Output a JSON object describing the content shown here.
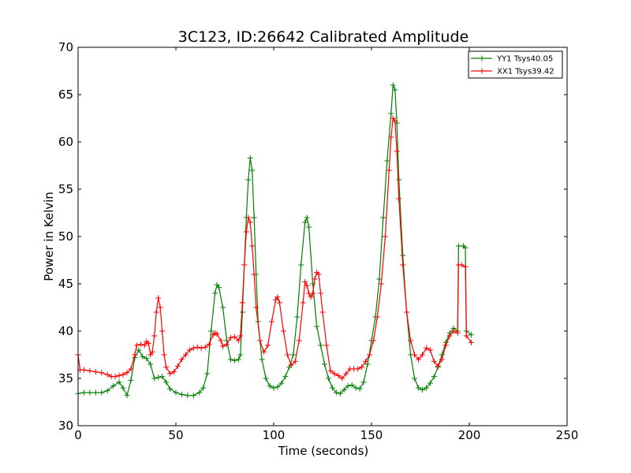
{
  "chart_data": {
    "type": "line",
    "title": "3C123, ID:26642 Calibrated Amplitude",
    "xlabel": "Time (seconds)",
    "ylabel": "Power in Kelvin",
    "xlim": [
      0,
      250
    ],
    "ylim": [
      30,
      70
    ],
    "xticks": [
      0,
      50,
      100,
      150,
      200,
      250
    ],
    "yticks": [
      30,
      35,
      40,
      45,
      50,
      55,
      60,
      65,
      70
    ],
    "grid": false,
    "legend_position": "top-right",
    "marker": "plus",
    "series": [
      {
        "name": "YY1 Tsys40.05",
        "color": "#008000",
        "points": [
          [
            0,
            33.4
          ],
          [
            3,
            33.5
          ],
          [
            6,
            33.5
          ],
          [
            9,
            33.5
          ],
          [
            12,
            33.5
          ],
          [
            15,
            33.7
          ],
          [
            18,
            34.2
          ],
          [
            21,
            34.6
          ],
          [
            23,
            34.0
          ],
          [
            25,
            33.2
          ],
          [
            27,
            34.8
          ],
          [
            29,
            37.2
          ],
          [
            31,
            38.0
          ],
          [
            33,
            37.3
          ],
          [
            35,
            37.1
          ],
          [
            37,
            36.5
          ],
          [
            39,
            35.0
          ],
          [
            41,
            35.1
          ],
          [
            43,
            35.2
          ],
          [
            45,
            34.6
          ],
          [
            47,
            33.9
          ],
          [
            50,
            33.5
          ],
          [
            53,
            33.3
          ],
          [
            56,
            33.2
          ],
          [
            59,
            33.2
          ],
          [
            62,
            33.5
          ],
          [
            64,
            34.0
          ],
          [
            66,
            35.5
          ],
          [
            68,
            40.0
          ],
          [
            70,
            44.0
          ],
          [
            71,
            44.9
          ],
          [
            72,
            44.6
          ],
          [
            74,
            42.5
          ],
          [
            76,
            39.0
          ],
          [
            78,
            37.0
          ],
          [
            80,
            36.9
          ],
          [
            82,
            37.0
          ],
          [
            83,
            37.5
          ],
          [
            84,
            42.0
          ],
          [
            85,
            47.0
          ],
          [
            86,
            52.0
          ],
          [
            87,
            56.0
          ],
          [
            88,
            58.3
          ],
          [
            89,
            57.0
          ],
          [
            90,
            52.0
          ],
          [
            91,
            46.0
          ],
          [
            92,
            41.0
          ],
          [
            94,
            37.0
          ],
          [
            96,
            35.0
          ],
          [
            98,
            34.2
          ],
          [
            100,
            34.0
          ],
          [
            102,
            34.1
          ],
          [
            104,
            34.5
          ],
          [
            106,
            35.2
          ],
          [
            108,
            36.2
          ],
          [
            110,
            37.5
          ],
          [
            112,
            41.5
          ],
          [
            114,
            47.0
          ],
          [
            116,
            51.5
          ],
          [
            117,
            52.0
          ],
          [
            118,
            51.0
          ],
          [
            120,
            45.0
          ],
          [
            122,
            40.5
          ],
          [
            124,
            38.5
          ],
          [
            126,
            36.5
          ],
          [
            128,
            35.0
          ],
          [
            130,
            34.0
          ],
          [
            132,
            33.5
          ],
          [
            134,
            33.4
          ],
          [
            136,
            33.8
          ],
          [
            138,
            34.2
          ],
          [
            140,
            34.3
          ],
          [
            142,
            34.0
          ],
          [
            144,
            33.9
          ],
          [
            146,
            34.6
          ],
          [
            148,
            36.5
          ],
          [
            150,
            39.0
          ],
          [
            152,
            41.5
          ],
          [
            154,
            45.5
          ],
          [
            156,
            52.0
          ],
          [
            158,
            58.0
          ],
          [
            160,
            63.0
          ],
          [
            161,
            66.0
          ],
          [
            162,
            65.5
          ],
          [
            163,
            62.0
          ],
          [
            164,
            56.0
          ],
          [
            166,
            48.0
          ],
          [
            168,
            42.0
          ],
          [
            170,
            37.5
          ],
          [
            172,
            35.0
          ],
          [
            174,
            34.0
          ],
          [
            176,
            33.8
          ],
          [
            178,
            34.0
          ],
          [
            180,
            34.5
          ],
          [
            182,
            35.2
          ],
          [
            184,
            36.2
          ],
          [
            186,
            37.5
          ],
          [
            188,
            38.8
          ],
          [
            190,
            39.8
          ],
          [
            192,
            40.3
          ],
          [
            194,
            40.0
          ],
          [
            194.5,
            49.0
          ],
          [
            197,
            49.0
          ],
          [
            198,
            48.8
          ],
          [
            198.5,
            40.0
          ],
          [
            201,
            39.6
          ]
        ]
      },
      {
        "name": "XX1 Tsys39.42",
        "color": "#ff0000",
        "points": [
          [
            0,
            37.5
          ],
          [
            1,
            35.9
          ],
          [
            3,
            35.9
          ],
          [
            6,
            35.8
          ],
          [
            9,
            35.7
          ],
          [
            12,
            35.6
          ],
          [
            15,
            35.4
          ],
          [
            17,
            35.2
          ],
          [
            19,
            35.2
          ],
          [
            21,
            35.3
          ],
          [
            23,
            35.4
          ],
          [
            25,
            35.6
          ],
          [
            27,
            36.0
          ],
          [
            29,
            37.5
          ],
          [
            30,
            38.5
          ],
          [
            32,
            38.6
          ],
          [
            34,
            38.5
          ],
          [
            35,
            38.9
          ],
          [
            36,
            38.7
          ],
          [
            37,
            37.5
          ],
          [
            38,
            37.8
          ],
          [
            39,
            39.5
          ],
          [
            40,
            42.0
          ],
          [
            41,
            43.5
          ],
          [
            42,
            42.5
          ],
          [
            43,
            40.0
          ],
          [
            44,
            37.5
          ],
          [
            45,
            36.2
          ],
          [
            47,
            35.5
          ],
          [
            49,
            35.7
          ],
          [
            51,
            36.3
          ],
          [
            53,
            37.0
          ],
          [
            55,
            37.5
          ],
          [
            57,
            38.0
          ],
          [
            59,
            38.2
          ],
          [
            61,
            38.3
          ],
          [
            63,
            38.2
          ],
          [
            65,
            38.3
          ],
          [
            67,
            38.6
          ],
          [
            69,
            39.6
          ],
          [
            70,
            39.8
          ],
          [
            71,
            39.7
          ],
          [
            73,
            39.0
          ],
          [
            74,
            38.4
          ],
          [
            76,
            38.6
          ],
          [
            78,
            39.3
          ],
          [
            80,
            39.4
          ],
          [
            82,
            39.0
          ],
          [
            83,
            39.5
          ],
          [
            84,
            43.0
          ],
          [
            85,
            47.0
          ],
          [
            86,
            50.5
          ],
          [
            87,
            52.0
          ],
          [
            88,
            51.5
          ],
          [
            89,
            49.0
          ],
          [
            90,
            46.0
          ],
          [
            91,
            42.5
          ],
          [
            93,
            39.0
          ],
          [
            95,
            37.8
          ],
          [
            97,
            38.5
          ],
          [
            99,
            41.0
          ],
          [
            101,
            43.3
          ],
          [
            102,
            43.6
          ],
          [
            103,
            43.0
          ],
          [
            105,
            40.0
          ],
          [
            107,
            37.5
          ],
          [
            109,
            36.4
          ],
          [
            111,
            36.8
          ],
          [
            113,
            39.0
          ],
          [
            115,
            43.0
          ],
          [
            116,
            45.2
          ],
          [
            117,
            44.8
          ],
          [
            118,
            44.0
          ],
          [
            119,
            43.6
          ],
          [
            120,
            44.0
          ],
          [
            121,
            45.5
          ],
          [
            122,
            46.2
          ],
          [
            123,
            46.0
          ],
          [
            124,
            44.0
          ],
          [
            125,
            42.0
          ],
          [
            127,
            38.5
          ],
          [
            129,
            35.8
          ],
          [
            131,
            35.5
          ],
          [
            133,
            35.3
          ],
          [
            135,
            35.0
          ],
          [
            137,
            35.5
          ],
          [
            139,
            36.0
          ],
          [
            141,
            36.0
          ],
          [
            143,
            36.0
          ],
          [
            145,
            36.2
          ],
          [
            147,
            36.8
          ],
          [
            149,
            37.5
          ],
          [
            151,
            39.0
          ],
          [
            153,
            41.5
          ],
          [
            155,
            45.0
          ],
          [
            157,
            50.0
          ],
          [
            159,
            57.0
          ],
          [
            160,
            60.5
          ],
          [
            161,
            62.5
          ],
          [
            162,
            62.2
          ],
          [
            163,
            59.0
          ],
          [
            164,
            54.0
          ],
          [
            166,
            47.0
          ],
          [
            168,
            42.0
          ],
          [
            170,
            39.0
          ],
          [
            172,
            37.5
          ],
          [
            174,
            37.0
          ],
          [
            176,
            37.5
          ],
          [
            178,
            38.2
          ],
          [
            180,
            38.0
          ],
          [
            182,
            36.8
          ],
          [
            184,
            36.3
          ],
          [
            186,
            37.0
          ],
          [
            188,
            38.5
          ],
          [
            190,
            39.5
          ],
          [
            192,
            40.0
          ],
          [
            194,
            39.8
          ],
          [
            194.5,
            47.0
          ],
          [
            196,
            47.0
          ],
          [
            198,
            46.8
          ],
          [
            198.5,
            39.5
          ],
          [
            201,
            38.8
          ]
        ]
      }
    ]
  }
}
